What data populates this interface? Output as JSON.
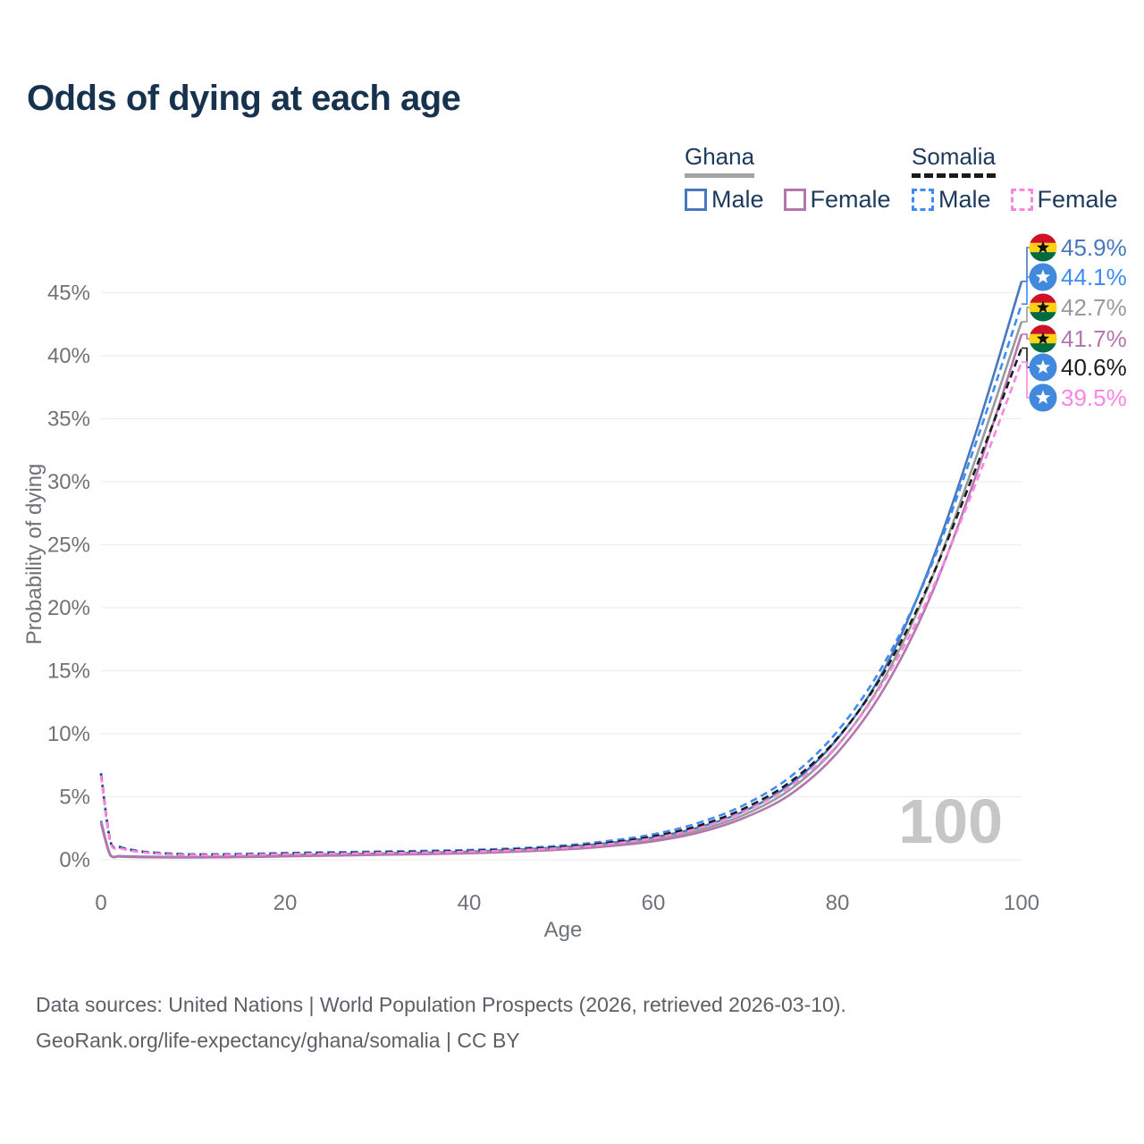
{
  "title": "Odds of dying at each age",
  "legend": {
    "groups": [
      {
        "country": "Ghana",
        "line_style": "solid",
        "underline_color": "#a3a3a3",
        "items": [
          {
            "label": "Male",
            "color": "#4878bd"
          },
          {
            "label": "Female",
            "color": "#b377ae"
          }
        ]
      },
      {
        "country": "Somalia",
        "line_style": "dashed",
        "underline_color": "#1a1a1a",
        "items": [
          {
            "label": "Male",
            "color": "#3d8bf5"
          },
          {
            "label": "Female",
            "color": "#fa85e3"
          }
        ]
      }
    ]
  },
  "chart_data": {
    "type": "line",
    "title": "Odds of dying at each age",
    "xlabel": "Age",
    "ylabel": "Probability of dying",
    "xlim": [
      0,
      100
    ],
    "ylim": [
      0,
      47
    ],
    "grid": true,
    "x_tick_values": [
      0,
      20,
      40,
      60,
      80,
      100
    ],
    "x_tick_labels": [
      "0",
      "20",
      "40",
      "60",
      "80",
      "100"
    ],
    "y_tick_values": [
      0,
      5,
      10,
      15,
      20,
      25,
      30,
      35,
      40,
      45
    ],
    "y_tick_labels": [
      "0%",
      "5%",
      "10%",
      "15%",
      "20%",
      "25%",
      "30%",
      "35%",
      "40%",
      "45%"
    ],
    "watermark": "100",
    "x": [
      0,
      1,
      2,
      3,
      5,
      8,
      10,
      15,
      20,
      25,
      30,
      35,
      40,
      45,
      50,
      55,
      60,
      65,
      70,
      75,
      80,
      85,
      90,
      95,
      100
    ],
    "series": [
      {
        "name": "Ghana Male",
        "flag": "ghana",
        "color": "#4878bd",
        "dash": false,
        "end_label": "45.9%",
        "values": [
          3.1,
          0.42,
          0.3,
          0.27,
          0.24,
          0.22,
          0.22,
          0.27,
          0.37,
          0.44,
          0.5,
          0.57,
          0.65,
          0.8,
          1.0,
          1.32,
          1.78,
          2.58,
          3.9,
          6.05,
          9.6,
          15.0,
          23.2,
          33.8,
          45.9
        ]
      },
      {
        "name": "Somalia Male",
        "flag": "somalia",
        "color": "#3d8bf5",
        "dash": true,
        "end_label": "44.1%",
        "values": [
          6.9,
          1.55,
          1.05,
          0.85,
          0.62,
          0.48,
          0.44,
          0.46,
          0.54,
          0.6,
          0.65,
          0.71,
          0.78,
          0.91,
          1.12,
          1.48,
          2.02,
          2.95,
          4.4,
          6.65,
          10.2,
          15.5,
          23.0,
          33.0,
          44.1
        ]
      },
      {
        "name": "Ghana Overall",
        "flag": "ghana",
        "color": "#9a9a9a",
        "dash": false,
        "end_label": "42.7%",
        "values": [
          3.0,
          0.39,
          0.28,
          0.25,
          0.22,
          0.2,
          0.2,
          0.24,
          0.32,
          0.39,
          0.45,
          0.51,
          0.58,
          0.72,
          0.9,
          1.19,
          1.62,
          2.36,
          3.62,
          5.65,
          9.05,
          14.3,
          21.9,
          31.8,
          42.7
        ]
      },
      {
        "name": "Ghana Female",
        "flag": "ghana",
        "color": "#b377ae",
        "dash": false,
        "end_label": "41.7%",
        "values": [
          2.9,
          0.36,
          0.26,
          0.23,
          0.2,
          0.18,
          0.18,
          0.21,
          0.27,
          0.33,
          0.39,
          0.45,
          0.52,
          0.64,
          0.81,
          1.07,
          1.47,
          2.17,
          3.37,
          5.25,
          8.5,
          13.5,
          20.7,
          30.4,
          41.7
        ]
      },
      {
        "name": "Somalia Overall",
        "flag": "somalia",
        "color": "#1c1c1c",
        "dash": true,
        "end_label": "40.6%",
        "values": [
          6.8,
          1.5,
          1.0,
          0.8,
          0.58,
          0.45,
          0.41,
          0.42,
          0.49,
          0.54,
          0.59,
          0.64,
          0.71,
          0.83,
          1.02,
          1.35,
          1.86,
          2.72,
          4.12,
          6.25,
          9.65,
          14.8,
          22.0,
          31.0,
          40.6
        ]
      },
      {
        "name": "Somalia Female",
        "flag": "somalia",
        "color": "#fa85e3",
        "dash": true,
        "end_label": "39.5%",
        "values": [
          6.7,
          1.45,
          0.96,
          0.76,
          0.55,
          0.42,
          0.38,
          0.39,
          0.45,
          0.49,
          0.54,
          0.58,
          0.65,
          0.76,
          0.93,
          1.23,
          1.71,
          2.52,
          3.86,
          5.9,
          9.1,
          14.1,
          21.0,
          29.8,
          39.5
        ]
      }
    ],
    "flag_colors": {
      "ghana_red": "#ce1126",
      "ghana_gold": "#fcd116",
      "ghana_green": "#006b3f",
      "ghana_star": "#111111",
      "somalia_blue": "#4189dd",
      "somalia_star": "#ffffff"
    }
  },
  "footer": {
    "line1": "Data sources: United Nations | World Population Prospects (2026, retrieved 2026-03-10).",
    "line2": "GeoRank.org/life-expectancy/ghana/somalia | CC BY"
  }
}
